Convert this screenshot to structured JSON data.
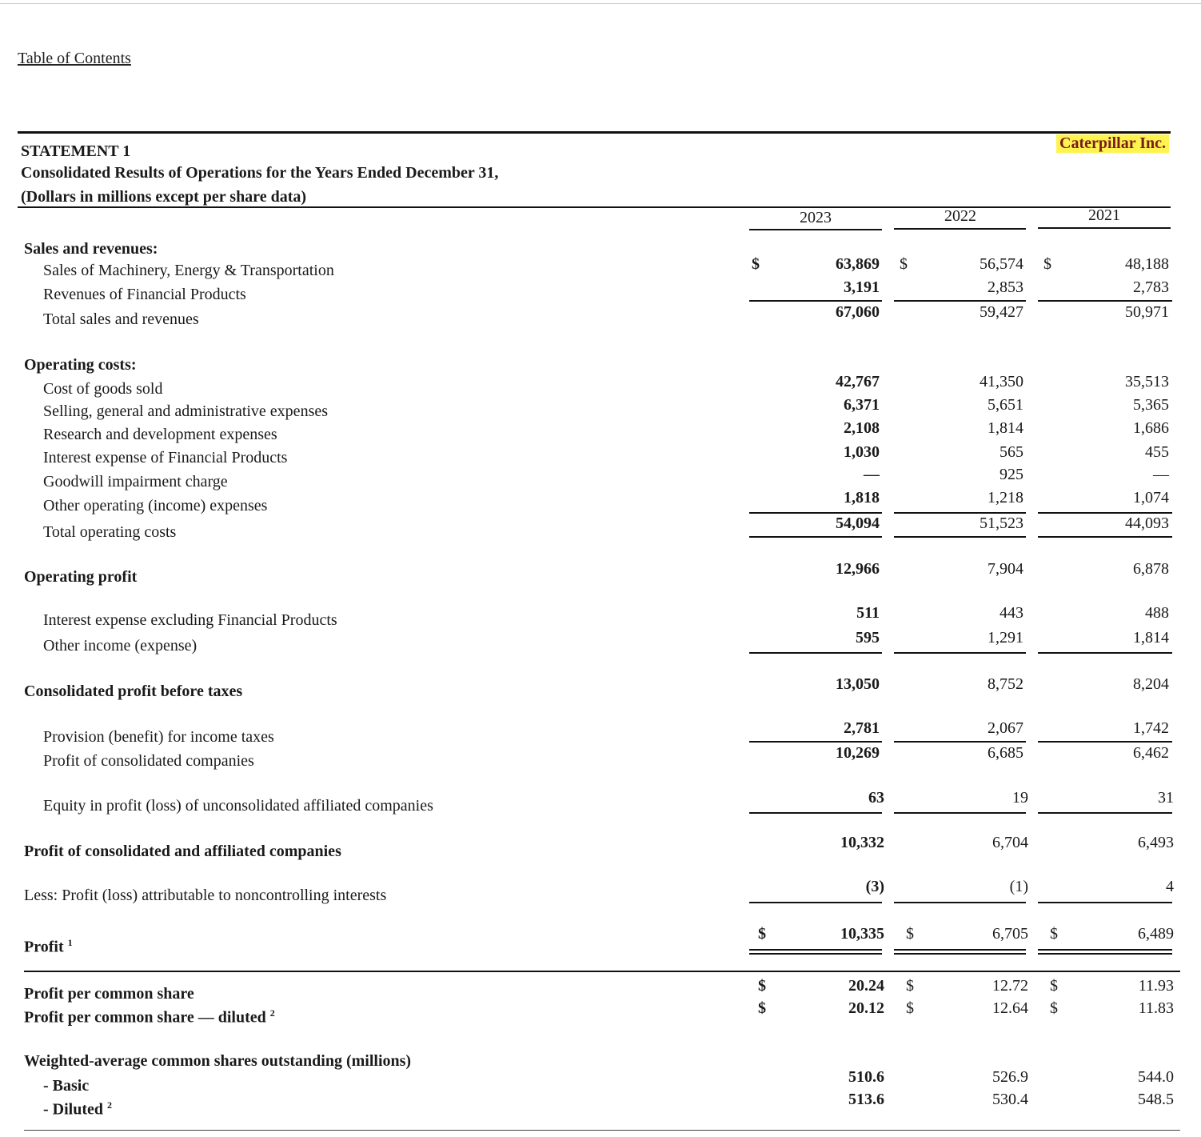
{
  "toc_link": "Table of Contents",
  "company": "Caterpillar Inc.",
  "highlight_color": "#fff44f",
  "title": {
    "line1": "STATEMENT 1",
    "line2": "Consolidated Results of Operations for the Years Ended December 31,",
    "line3": "(Dollars in millions except per share data)"
  },
  "years": [
    "2023",
    "2022",
    "2021"
  ],
  "rows": [
    {
      "label": "Sales and revenues:",
      "bold": true,
      "indent": 0
    },
    {
      "label": "Sales of Machinery, Energy & Transportation",
      "indent": 1,
      "values": [
        "63,869",
        "56,574",
        "48,188"
      ],
      "dollar": true
    },
    {
      "label": "Revenues of Financial Products",
      "indent": 1,
      "values": [
        "3,191",
        "2,853",
        "2,783"
      ]
    },
    {
      "label": "Total sales and revenues",
      "indent": 1,
      "values": [
        "67,060",
        "59,427",
        "50,971"
      ]
    },
    {
      "label": "Operating costs:",
      "bold": true,
      "indent": 0
    },
    {
      "label": "Cost of goods sold",
      "indent": 1,
      "values": [
        "42,767",
        "41,350",
        "35,513"
      ]
    },
    {
      "label": "Selling, general and administrative expenses",
      "indent": 1,
      "values": [
        "6,371",
        "5,651",
        "5,365"
      ]
    },
    {
      "label": "Research and development expenses",
      "indent": 1,
      "values": [
        "2,108",
        "1,814",
        "1,686"
      ]
    },
    {
      "label": "Interest expense of Financial Products",
      "indent": 1,
      "values": [
        "1,030",
        "565",
        "455"
      ]
    },
    {
      "label": "Goodwill impairment charge",
      "indent": 1,
      "values": [
        "—",
        "925",
        "—"
      ]
    },
    {
      "label": "Other operating (income) expenses",
      "indent": 1,
      "values": [
        "1,818",
        "1,218",
        "1,074"
      ]
    },
    {
      "label": "Total operating costs",
      "indent": 1,
      "values": [
        "54,094",
        "51,523",
        "44,093"
      ]
    },
    {
      "label": "Operating profit",
      "bold": true,
      "indent": 0,
      "values": [
        "12,966",
        "7,904",
        "6,878"
      ]
    },
    {
      "label": "Interest expense excluding Financial Products",
      "indent": 1,
      "values": [
        "511",
        "443",
        "488"
      ]
    },
    {
      "label": "Other income (expense)",
      "indent": 1,
      "values": [
        "595",
        "1,291",
        "1,814"
      ]
    },
    {
      "label": "Consolidated profit before taxes",
      "bold": true,
      "indent": 0,
      "values": [
        "13,050",
        "8,752",
        "8,204"
      ]
    },
    {
      "label": "Provision (benefit) for income taxes",
      "indent": 1,
      "values": [
        "2,781",
        "2,067",
        "1,742"
      ]
    },
    {
      "label": "Profit of consolidated companies",
      "indent": 1,
      "values": [
        "10,269",
        "6,685",
        "6,462"
      ]
    },
    {
      "label": "Equity in profit (loss) of unconsolidated affiliated companies",
      "indent": 1,
      "values": [
        "63",
        "19",
        "31"
      ]
    },
    {
      "label": "Profit of consolidated and affiliated companies",
      "bold": true,
      "indent": 0,
      "values": [
        "10,332",
        "6,704",
        "6,493"
      ]
    },
    {
      "label": "Less: Profit (loss) attributable to noncontrolling interests",
      "indent": 0,
      "values": [
        "(3)",
        "(1)",
        "4"
      ]
    },
    {
      "label": "Profit",
      "sup": "1",
      "bold": true,
      "indent": 0,
      "values": [
        "10,335",
        "6,705",
        "6,489"
      ],
      "dollar": true
    },
    {
      "label": "Profit per common share",
      "bold": true,
      "indent": 0,
      "values": [
        "20.24",
        "12.72",
        "11.93"
      ],
      "dollar": true
    },
    {
      "label": "Profit per common share — diluted",
      "sup": "2",
      "bold": true,
      "indent": 0,
      "values": [
        "20.12",
        "12.64",
        "11.83"
      ],
      "dollar": true
    },
    {
      "label": "Weighted-average common shares outstanding (millions)",
      "bold": true,
      "indent": 0
    },
    {
      "label": "- Basic",
      "bold": true,
      "indent": 1,
      "values": [
        "510.6",
        "526.9",
        "544.0"
      ]
    },
    {
      "label": "- Diluted",
      "sup": "2",
      "bold": true,
      "indent": 1,
      "values": [
        "513.6",
        "530.4",
        "548.5"
      ]
    }
  ],
  "currency_symbol": "$"
}
